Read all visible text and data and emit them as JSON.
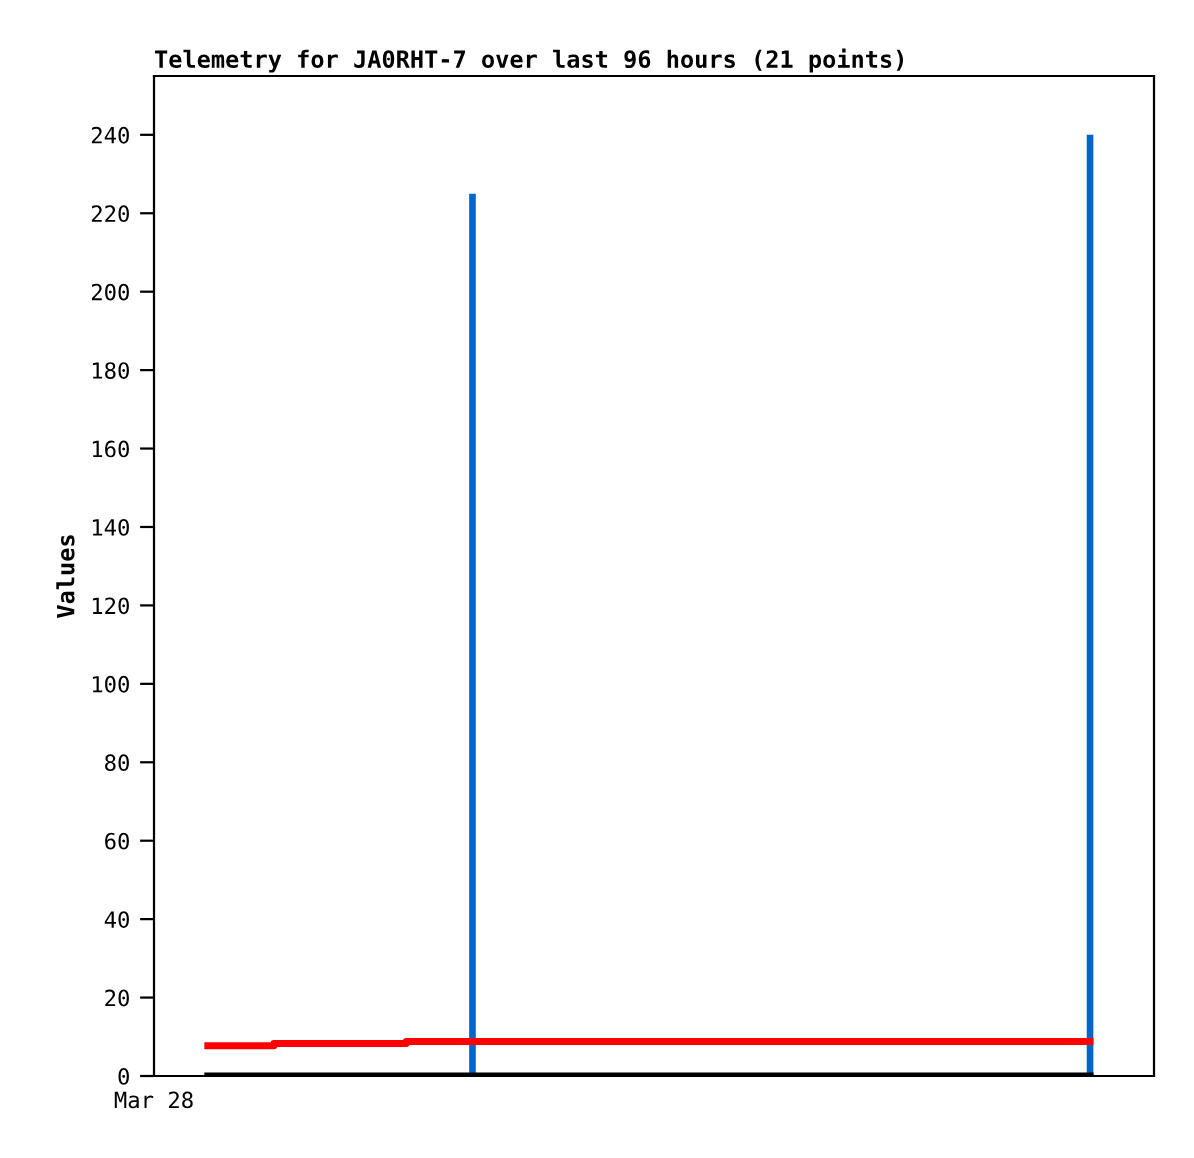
{
  "chart_data": {
    "type": "line",
    "title": "Telemetry for JA0RHT-7 over last 96 hours (21 points)",
    "ylabel": "Values",
    "annotations": [
      "Mar 28"
    ],
    "categories": [
      null,
      null,
      null,
      null,
      null,
      null,
      null,
      null,
      null,
      null,
      null,
      null,
      null,
      null,
      null,
      null,
      null,
      null,
      null,
      null,
      null
    ],
    "ylim": [
      0,
      255
    ],
    "yticks": [
      0,
      20,
      40,
      60,
      80,
      100,
      120,
      140,
      160,
      180,
      200,
      220,
      240
    ],
    "grid": false,
    "marker": "none",
    "line_style": "solid",
    "series": [
      {
        "type": "step",
        "color": "#ff0000",
        "values": [
          7.7,
          7.7,
          8.3,
          8.3,
          8.3,
          8.8,
          8.8,
          8.8,
          8.8,
          8.8,
          8.8,
          8.8,
          8.8,
          8.8,
          8.8,
          8.8,
          8.8,
          8.8,
          8.8,
          8.8,
          8.8
        ]
      },
      {
        "color": "#000000",
        "values": [
          0,
          0,
          0,
          0,
          0,
          0,
          0,
          0,
          0,
          0,
          0,
          0,
          0,
          0,
          0,
          0,
          0,
          0,
          0,
          0,
          0
        ]
      },
      {
        "type": "bar",
        "color": "#0066cc",
        "values": [
          0,
          0,
          0,
          0,
          0,
          0,
          225,
          0,
          0,
          0,
          0,
          0,
          0,
          0,
          0,
          0,
          0,
          0,
          0,
          0,
          240
        ]
      }
    ]
  }
}
